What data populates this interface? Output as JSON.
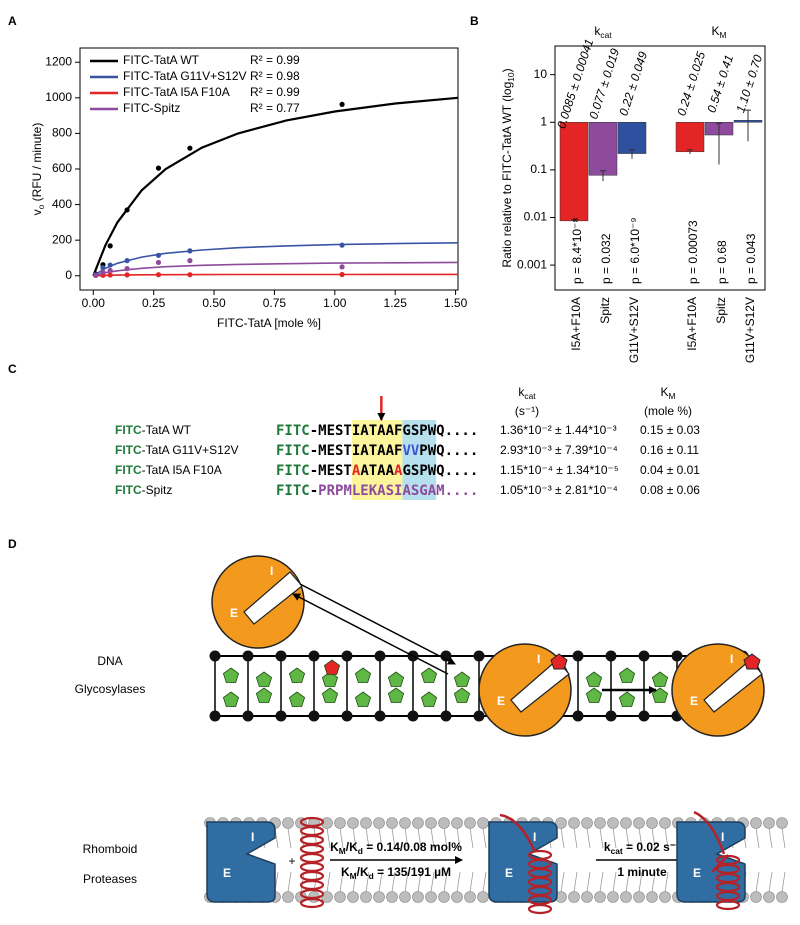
{
  "panel_labels": [
    "A",
    "B",
    "C",
    "D"
  ],
  "chart_data": [
    {
      "type": "line",
      "x_label": "FITC-TatA [mole %]",
      "y_label": [
        {
          "text": "v"
        },
        {
          "text": "o",
          "style": "sub"
        },
        {
          "text": " (RFU / minute)"
        }
      ],
      "xlim": [
        -0.055,
        1.51
      ],
      "ylim": [
        -80,
        1280
      ],
      "xticks": [
        {
          "value": 0,
          "label": "0.00"
        },
        0.25,
        {
          "value": 0.5,
          "label": "0.50"
        },
        0.75,
        {
          "value": 1,
          "label": "1.00"
        },
        1.25,
        {
          "value": 1.5,
          "label": "1.50"
        }
      ],
      "yticks": [
        0,
        200,
        400,
        600,
        800,
        1000,
        1200
      ],
      "series": [
        {
          "name": "FITC-TatA WT",
          "r2": "R² = 0.99",
          "color": "#000000",
          "x": [
            0.01,
            0.04,
            0.07,
            0.14,
            0.27,
            0.4,
            1.03
          ],
          "values": [
            10,
            62,
            168,
            370,
            605,
            717,
            963
          ],
          "fit_x": [
            0,
            0.05,
            0.1,
            0.2,
            0.3,
            0.45,
            0.6,
            0.8,
            1.0,
            1.25,
            1.51
          ],
          "fit_values": [
            0,
            171,
            300,
            480,
            600,
            720,
            800,
            873,
            923,
            968,
            1000
          ]
        },
        {
          "name": "FITC-TatA G11V+S12V",
          "r2": "R² = 0.98",
          "color": "#3a54a4",
          "x": [
            0.01,
            0.04,
            0.07,
            0.14,
            0.27,
            0.4,
            1.03
          ],
          "values": [
            5,
            45,
            60,
            85,
            115,
            140,
            172
          ],
          "fit_x": [
            0,
            0.05,
            0.1,
            0.2,
            0.3,
            0.45,
            0.6,
            0.8,
            1.0,
            1.25,
            1.51
          ],
          "fit_values": [
            0,
            42,
            70,
            105,
            126,
            145,
            158,
            168,
            175,
            181,
            185
          ]
        },
        {
          "name": "FITC-TatA I5A F10A",
          "r2": "R² = 0.99",
          "color": "#e42526",
          "x": [
            0.01,
            0.04,
            0.07,
            0.14,
            0.27,
            0.4,
            1.03
          ],
          "values": [
            2,
            3,
            4,
            5,
            6,
            6,
            7
          ],
          "fit_x": [
            0,
            0.05,
            0.1,
            0.2,
            0.3,
            0.45,
            0.6,
            0.8,
            1.0,
            1.25,
            1.51
          ],
          "fit_values": [
            0,
            2.7,
            4,
            5.3,
            6,
            6.5,
            6.9,
            7.1,
            7.3,
            7.4,
            7.5
          ]
        },
        {
          "name": "FITC-Spitz",
          "r2": "R² = 0.77",
          "color": "#8e4a9c",
          "x": [
            0.01,
            0.04,
            0.07,
            0.14,
            0.27,
            0.4,
            1.03
          ],
          "values": [
            3,
            20,
            30,
            40,
            75,
            85,
            50
          ],
          "fit_x": [
            0,
            0.05,
            0.1,
            0.2,
            0.3,
            0.45,
            0.6,
            0.8,
            1.0,
            1.25,
            1.51
          ],
          "fit_values": [
            0,
            17,
            28,
            42,
            51,
            59,
            64,
            68,
            71,
            73,
            75
          ]
        }
      ]
    },
    {
      "type": "bar",
      "log_scale": true,
      "y_label": [
        {
          "text": "Ratio relative to FITC-TatA WT (log"
        },
        {
          "text": "10",
          "style": "sub"
        },
        {
          "text": ")"
        }
      ],
      "ylim": [
        0.0003,
        40
      ],
      "yticks": [
        0.001,
        0.01,
        0.1,
        1,
        10
      ],
      "colors": [
        "#e42526",
        "#8e4a9c",
        "#2f4f9f"
      ],
      "groups": [
        {
          "title": [
            {
              "text": "k"
            },
            {
              "text": "cat",
              "style": "sub"
            }
          ],
          "categories": [
            "I5A+F10A",
            "Spitz",
            "G11V+S12V"
          ],
          "values": [
            0.0085,
            0.077,
            0.22
          ],
          "errors": [
            0.00041,
            0.019,
            0.049
          ],
          "value_labels": [
            "0.0085 ± 0.00041",
            "0.077 ± 0.019",
            "0.22 ± 0.049"
          ],
          "p_labels": [
            "p = 8.4*10⁻⁸",
            "p = 0.032",
            "p = 6.0*10⁻⁹"
          ]
        },
        {
          "title": [
            {
              "text": "K"
            },
            {
              "text": "M",
              "style": "sub"
            }
          ],
          "categories": [
            "I5A+F10A",
            "Spitz",
            "G11V+S12V"
          ],
          "values": [
            0.24,
            0.54,
            1.1
          ],
          "errors": [
            0.025,
            0.41,
            0.7
          ],
          "value_labels": [
            "0.24 ± 0.025",
            "0.54 ± 0.41",
            "1.10 ± 0.70"
          ],
          "p_labels": [
            "p = 0.00073",
            "p = 0.68",
            "p = 0.043"
          ]
        }
      ]
    }
  ],
  "table": {
    "headers": [
      {
        "title": [
          {
            "text": "k"
          },
          {
            "text": "cat",
            "style": "sub"
          }
        ],
        "unit": "(s⁻¹)"
      },
      {
        "title": [
          {
            "text": "K"
          },
          {
            "text": "M",
            "style": "sub"
          }
        ],
        "unit": "(mole %)"
      }
    ],
    "rows": [
      {
        "name": [
          {
            "text": "FITC",
            "color": "#1f7a3a",
            "bold": true
          },
          {
            "text": "-TatA WT"
          }
        ],
        "sequence": [
          {
            "text": "FITC",
            "color": "#1f7a3a"
          },
          {
            "text": "-MESTIATAAFGSPWQ...."
          }
        ],
        "kcat": "1.36*10⁻² ± 1.44*10⁻³",
        "km": "0.15 ± 0.03"
      },
      {
        "name": [
          {
            "text": "FITC",
            "color": "#1f7a3a",
            "bold": true
          },
          {
            "text": "-TatA G11V+S12V"
          }
        ],
        "sequence": [
          {
            "text": "FITC",
            "color": "#1f7a3a"
          },
          {
            "text": "-MESTIATAAF"
          },
          {
            "text": "VV",
            "color": "#3a54d4"
          },
          {
            "text": "PWQ...."
          }
        ],
        "kcat": "2.93*10⁻³ ± 7.39*10⁻⁴",
        "km": "0.16 ± 0.11"
      },
      {
        "name": [
          {
            "text": "FITC",
            "color": "#1f7a3a",
            "bold": true
          },
          {
            "text": "-TatA I5A F10A"
          }
        ],
        "sequence": [
          {
            "text": "FITC",
            "color": "#1f7a3a"
          },
          {
            "text": "-MEST"
          },
          {
            "text": "A",
            "color": "#e42526"
          },
          {
            "text": "ATAA"
          },
          {
            "text": "A",
            "color": "#e42526"
          },
          {
            "text": "GSPWQ...."
          }
        ],
        "kcat": "1.15*10⁻⁴ ± 1.34*10⁻⁵",
        "km": "0.04 ± 0.01"
      },
      {
        "name": [
          {
            "text": "FITC",
            "color": "#1f7a3a",
            "bold": true
          },
          {
            "text": "-Spitz"
          }
        ],
        "sequence": [
          {
            "text": "FITC",
            "color": "#1f7a3a"
          },
          {
            "text": "-"
          },
          {
            "text": "PRPMLEKASIASGAM....",
            "color": "#8e4a9c"
          }
        ],
        "kcat": "1.05*10⁻³ ± 2.81*10⁻⁴",
        "km": "0.08 ± 0.06"
      }
    ]
  },
  "diagram": {
    "active_site": "E",
    "exosite": "I",
    "plus": "+",
    "glycosylases": [
      "DNA",
      "Glycosylases"
    ],
    "rhomboid": [
      "Rhomboid",
      "Proteases"
    ],
    "binding": [
      {
        "text": "K"
      },
      {
        "text": "M",
        "style": "sub"
      },
      {
        "text": "/K"
      },
      {
        "text": "d",
        "style": "sub"
      },
      {
        "text": " = 0.14/0.08 mol%"
      }
    ],
    "binding_alt": [
      {
        "text": "K"
      },
      {
        "text": "M",
        "style": "sub"
      },
      {
        "text": "/K"
      },
      {
        "text": "d",
        "style": "sub"
      },
      {
        "text": " = 135/191 µM"
      }
    ],
    "catalysis": [
      {
        "text": "k"
      },
      {
        "text": "cat",
        "style": "sub"
      },
      {
        "text": " = 0.02 s⁻¹"
      }
    ],
    "time": "1 minute"
  }
}
